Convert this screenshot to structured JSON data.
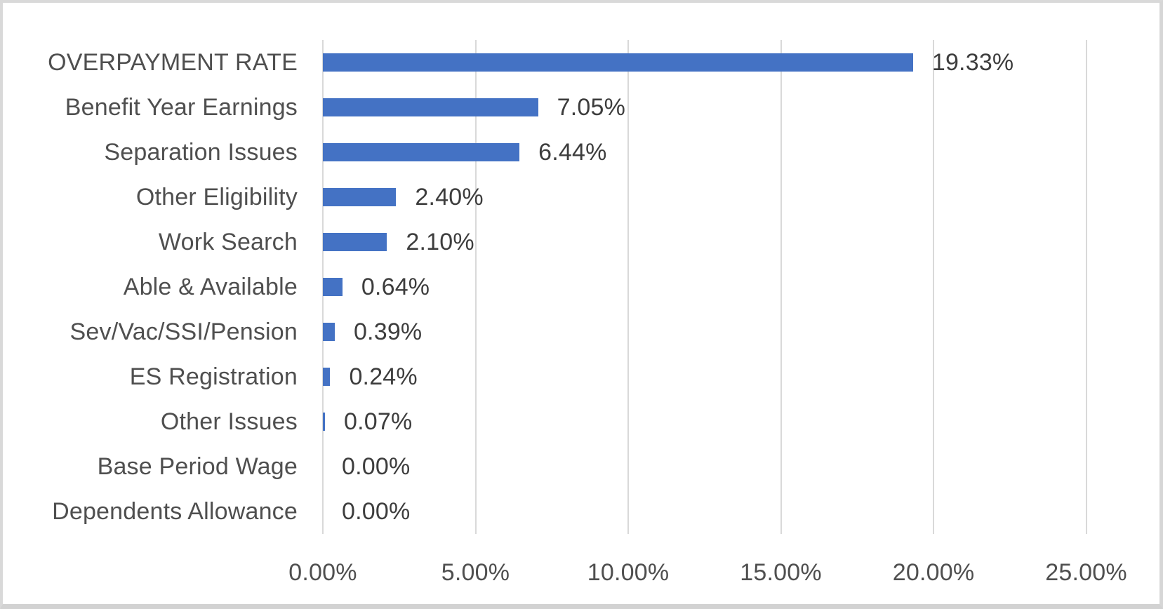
{
  "chart_data": {
    "type": "bar",
    "orientation": "horizontal",
    "title": "",
    "categories": [
      "OVERPAYMENT RATE",
      "Benefit Year Earnings",
      "Separation Issues",
      "Other Eligibility",
      "Work Search",
      "Able & Available",
      "Sev/Vac/SSI/Pension",
      "ES Registration",
      "Other Issues",
      "Base Period Wage",
      "Dependents Allowance"
    ],
    "values": [
      19.33,
      7.05,
      6.44,
      2.4,
      2.1,
      0.64,
      0.39,
      0.24,
      0.07,
      0.0,
      0.0
    ],
    "data_labels": [
      "19.33%",
      "7.05%",
      "6.44%",
      "2.40%",
      "2.10%",
      "0.64%",
      "0.39%",
      "0.24%",
      "0.07%",
      "0.00%",
      "0.00%"
    ],
    "x_ticks": [
      "0.00%",
      "5.00%",
      "10.00%",
      "15.00%",
      "20.00%",
      "25.00%"
    ],
    "x_tick_values": [
      0,
      5,
      10,
      15,
      20,
      25
    ],
    "xlim": [
      0,
      25
    ],
    "xlabel": "",
    "ylabel": "",
    "grid": true,
    "legend": false,
    "colors": {
      "bar": "#4472c4",
      "gridline": "#d9d9d9",
      "axis_line": "#d9d9d9",
      "category_text": "#4f4f4f",
      "tick_text": "#4f4f4f",
      "data_label_text": "#3d3d3d",
      "background": "#ffffff",
      "frame_border": "#d9d9d9"
    }
  }
}
